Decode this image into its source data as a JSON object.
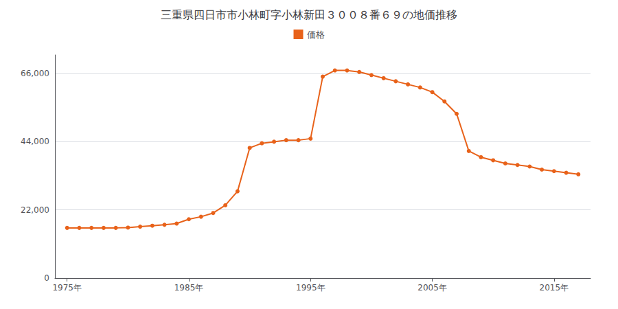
{
  "chart_data": {
    "type": "line",
    "title": "三重県四日市市小林町字小林新田３００８番６９の地価推移",
    "x": [
      1975,
      1976,
      1977,
      1978,
      1979,
      1980,
      1981,
      1982,
      1983,
      1984,
      1985,
      1986,
      1987,
      1988,
      1989,
      1990,
      1991,
      1992,
      1993,
      1994,
      1995,
      1996,
      1997,
      1998,
      1999,
      2000,
      2001,
      2002,
      2003,
      2004,
      2005,
      2006,
      2007,
      2008,
      2009,
      2010,
      2011,
      2012,
      2013,
      2014,
      2015,
      2016,
      2017
    ],
    "series": [
      {
        "name": "価格",
        "color": "#E8621A",
        "marker": "circle",
        "values": [
          16200,
          16200,
          16200,
          16200,
          16200,
          16300,
          16600,
          16900,
          17200,
          17600,
          19000,
          19800,
          21000,
          23500,
          28000,
          42000,
          43500,
          44000,
          44500,
          44500,
          45000,
          65000,
          67000,
          67000,
          66500,
          65500,
          64500,
          63500,
          62500,
          61500,
          60000,
          57000,
          53000,
          41000,
          39000,
          38000,
          37000,
          36500,
          36000,
          35000,
          34500,
          34000,
          33500
        ]
      }
    ],
    "xlim": [
      1974,
      2018
    ],
    "xticks": [
      {
        "value": 1975,
        "label": "1975年"
      },
      {
        "value": 1985,
        "label": "1985年"
      },
      {
        "value": 1995,
        "label": "1995年"
      },
      {
        "value": 2005,
        "label": "2005年"
      },
      {
        "value": 2015,
        "label": "2015年"
      }
    ],
    "ylim": [
      0,
      72000
    ],
    "yticks": [
      0,
      {
        "value": 22000,
        "label": "22,000"
      },
      {
        "value": 44000,
        "label": "44,000"
      },
      {
        "value": 66000,
        "label": "66,000"
      }
    ],
    "grid": true,
    "legend": "top"
  }
}
